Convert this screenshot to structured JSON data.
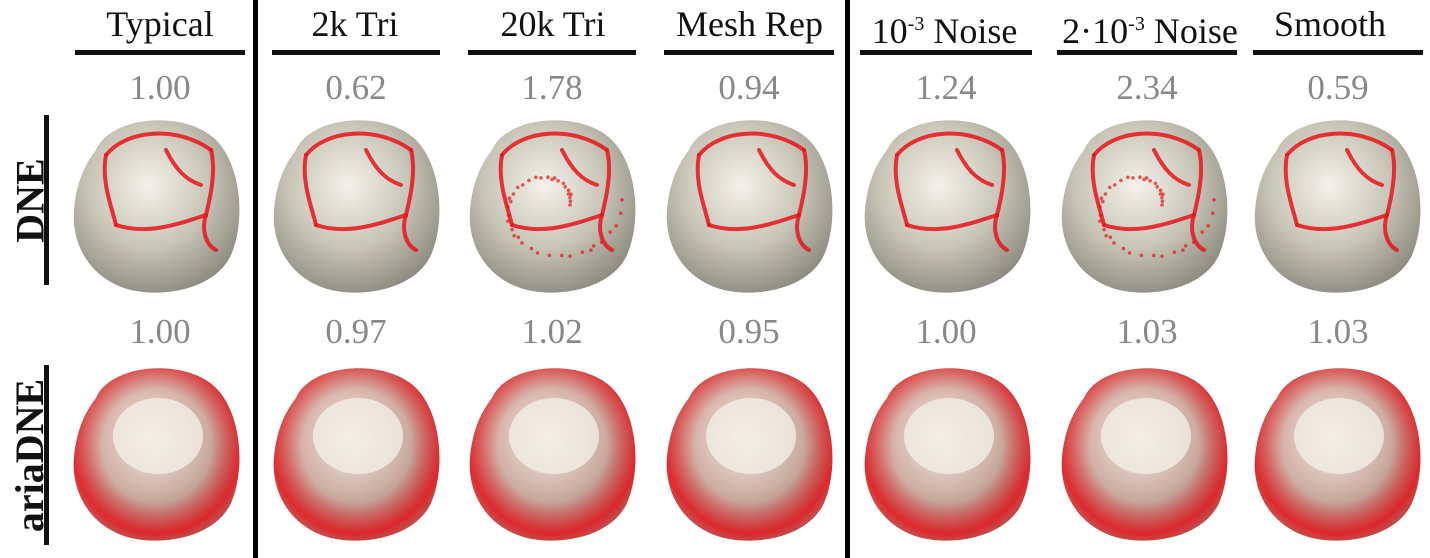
{
  "columns": [
    {
      "title": "Typical",
      "dne": "1.00",
      "aria": "1.00"
    },
    {
      "title": "2k Tri",
      "dne": "0.62",
      "aria": "0.97"
    },
    {
      "title": "20k Tri",
      "dne": "1.78",
      "aria": "1.02"
    },
    {
      "title": "Mesh Rep",
      "dne": "0.94",
      "aria": "0.95"
    },
    {
      "title_pre": "10",
      "title_sup": "-3",
      "title_post": " Noise",
      "dne": "1.24",
      "aria": "1.00"
    },
    {
      "title_pre": "2·10",
      "title_sup": "-3",
      "title_post": " Noise",
      "dne": "2.34",
      "aria": "1.03"
    },
    {
      "title": "Smooth",
      "dne": "0.59",
      "aria": "1.03"
    }
  ],
  "rows": {
    "dne": "DNE",
    "aria": "ariaDNE"
  },
  "colors": {
    "tooth": "#c9c6b8",
    "highlight": "#e8141b",
    "score": "#888888"
  }
}
